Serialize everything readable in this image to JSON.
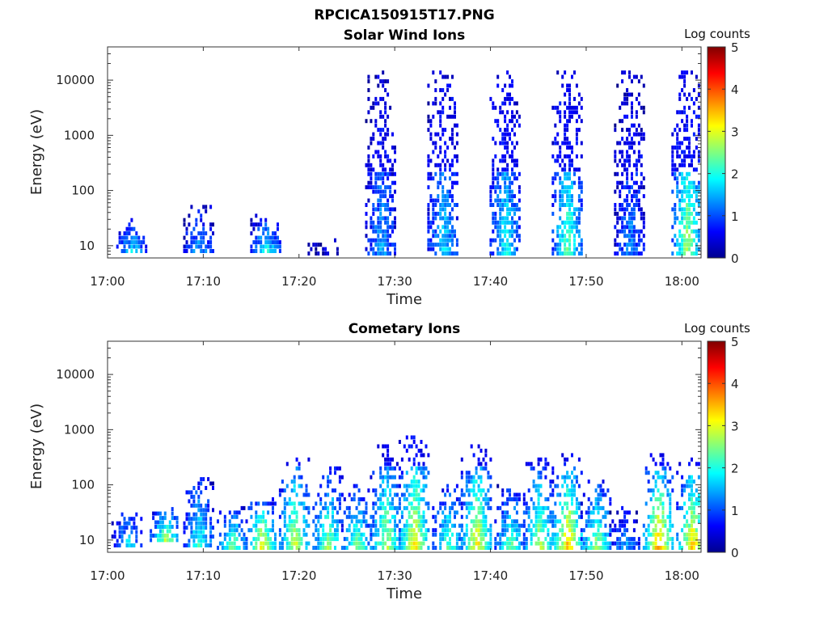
{
  "figure_title": "RPCICA150915T17.PNG",
  "chart_data": [
    {
      "type": "heatmap",
      "title": "Solar Wind Ions",
      "xlabel": "Time",
      "ylabel": "Energy (eV)",
      "y_scale": "log",
      "ylim": [
        6,
        40000
      ],
      "x_ticks": [
        "17:00",
        "17:10",
        "17:20",
        "17:30",
        "17:40",
        "17:50",
        "18:00"
      ],
      "xlim": [
        "17:00",
        "18:02"
      ],
      "y_ticks": [
        10,
        100,
        1000,
        10000
      ],
      "y_tick_labels": [
        "10",
        "100",
        "1000",
        "10000"
      ],
      "colorbar": {
        "label": "Log counts",
        "range": [
          0,
          5
        ],
        "ticks": [
          "0",
          "1",
          "2",
          "3",
          "4",
          "5"
        ],
        "colormap": "jet"
      },
      "bursts": [
        {
          "time": "17:02.5",
          "e_low": 8,
          "e_high": 30,
          "peak_log_counts": 1.8
        },
        {
          "time": "17:09.5",
          "e_low": 8,
          "e_high": 60,
          "peak_log_counts": 1.5
        },
        {
          "time": "17:16.5",
          "e_low": 8,
          "e_high": 40,
          "peak_log_counts": 2.0
        },
        {
          "time": "17:22.5",
          "e_low": 6,
          "e_high": 15,
          "peak_log_counts": 0.5
        },
        {
          "time": "17:28.5",
          "e_low": 6,
          "e_high": 15000,
          "peak_log_counts": 1.5
        },
        {
          "time": "17:35",
          "e_low": 6,
          "e_high": 15000,
          "peak_log_counts": 1.8
        },
        {
          "time": "17:41.5",
          "e_low": 6,
          "e_high": 15000,
          "peak_log_counts": 2.0
        },
        {
          "time": "17:48",
          "e_low": 6,
          "e_high": 15000,
          "peak_log_counts": 2.4
        },
        {
          "time": "17:54.5",
          "e_low": 6,
          "e_high": 15000,
          "peak_log_counts": 1.3
        },
        {
          "time": "18:00.5",
          "e_low": 6,
          "e_high": 15000,
          "peak_log_counts": 2.8
        }
      ]
    },
    {
      "type": "heatmap",
      "title": "Cometary Ions",
      "xlabel": "Time",
      "ylabel": "Energy (eV)",
      "y_scale": "log",
      "ylim": [
        6,
        40000
      ],
      "x_ticks": [
        "17:00",
        "17:10",
        "17:20",
        "17:30",
        "17:40",
        "17:50",
        "18:00"
      ],
      "xlim": [
        "17:00",
        "18:02"
      ],
      "y_ticks": [
        10,
        100,
        1000,
        10000
      ],
      "y_tick_labels": [
        "10",
        "100",
        "1000",
        "10000"
      ],
      "colorbar": {
        "label": "Log counts",
        "range": [
          0,
          5
        ],
        "ticks": [
          "0",
          "1",
          "2",
          "3",
          "4",
          "5"
        ],
        "colormap": "jet"
      },
      "bursts": [
        {
          "time": "17:02",
          "e_low": 8,
          "e_high": 35,
          "peak_log_counts": 1.8
        },
        {
          "time": "17:06",
          "e_low": 10,
          "e_high": 40,
          "peak_log_counts": 2.8
        },
        {
          "time": "17:09.5",
          "e_low": 8,
          "e_high": 150,
          "peak_log_counts": 2.2
        },
        {
          "time": "17:13",
          "e_low": 6,
          "e_high": 40,
          "peak_log_counts": 2.8
        },
        {
          "time": "17:16",
          "e_low": 6,
          "e_high": 60,
          "peak_log_counts": 3.5
        },
        {
          "time": "17:19.5",
          "e_low": 6,
          "e_high": 300,
          "peak_log_counts": 3.2
        },
        {
          "time": "17:23",
          "e_low": 6,
          "e_high": 200,
          "peak_log_counts": 2.8
        },
        {
          "time": "17:26",
          "e_low": 6,
          "e_high": 100,
          "peak_log_counts": 2.6
        },
        {
          "time": "17:29",
          "e_low": 6,
          "e_high": 500,
          "peak_log_counts": 3.0
        },
        {
          "time": "17:32",
          "e_low": 6,
          "e_high": 1000,
          "peak_log_counts": 3.4
        },
        {
          "time": "17:35.5",
          "e_low": 6,
          "e_high": 100,
          "peak_log_counts": 2.6
        },
        {
          "time": "17:38.5",
          "e_low": 6,
          "e_high": 500,
          "peak_log_counts": 3.4
        },
        {
          "time": "17:42",
          "e_low": 6,
          "e_high": 100,
          "peak_log_counts": 2.5
        },
        {
          "time": "17:45",
          "e_low": 6,
          "e_high": 300,
          "peak_log_counts": 3.0
        },
        {
          "time": "17:48",
          "e_low": 6,
          "e_high": 400,
          "peak_log_counts": 3.7
        },
        {
          "time": "17:51",
          "e_low": 6,
          "e_high": 120,
          "peak_log_counts": 2.9
        },
        {
          "time": "17:54",
          "e_low": 6,
          "e_high": 40,
          "peak_log_counts": 1.6
        },
        {
          "time": "17:57.5",
          "e_low": 6,
          "e_high": 400,
          "peak_log_counts": 3.8
        },
        {
          "time": "18:01",
          "e_low": 6,
          "e_high": 300,
          "peak_log_counts": 3.6
        }
      ]
    }
  ]
}
